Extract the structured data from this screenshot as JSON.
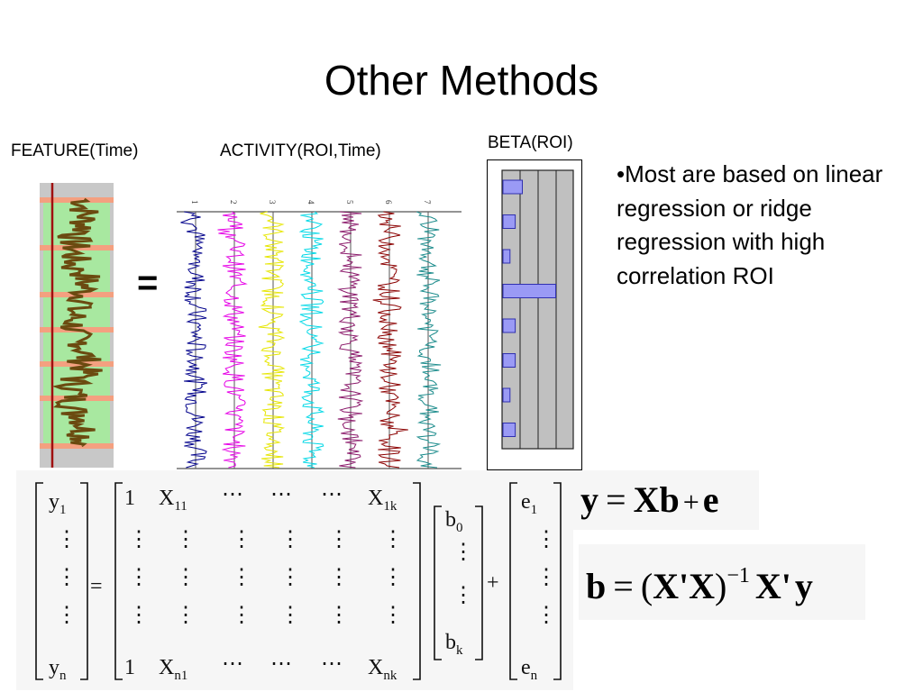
{
  "title": "Other Methods",
  "labels": {
    "feature": "FEATURE(Time)",
    "activity": "ACTIVITY(ROI,Time)",
    "beta": "BETA(ROI)"
  },
  "equals": "=",
  "bullet": "•Most are based on linear regression or ridge regression with high correlation ROI",
  "activity_plot": {
    "series": [
      {
        "label": "1",
        "color": "#00008b"
      },
      {
        "label": "2",
        "color": "#e600e6"
      },
      {
        "label": "3",
        "color": "#e6e600"
      },
      {
        "label": "4",
        "color": "#00d8e6"
      },
      {
        "label": "5",
        "color": "#8b1a6b"
      },
      {
        "label": "6",
        "color": "#8b0000"
      },
      {
        "label": "7",
        "color": "#1a8b8b"
      }
    ]
  },
  "feature_plot": {
    "trace_color": "#6b4a10",
    "band_color": "#a8e8a0",
    "stripe_color": "#f4a080",
    "marker_color": "#a01010"
  },
  "beta_plot": {
    "bar_color": "#9a9af5",
    "values": [
      0.55,
      0.35,
      0.2,
      1.5,
      0.35,
      0.35,
      0.2,
      0.35
    ]
  },
  "matrix_eq": {
    "y": [
      "y",
      "1",
      "n"
    ],
    "dots": "⋮",
    "hdots": "⋯",
    "eq": "=",
    "plus": "+",
    "x_row1": [
      "1",
      "X",
      "11",
      "X",
      "1k"
    ],
    "x_rown": [
      "1",
      "X",
      "n1",
      "X",
      "nk"
    ],
    "b": [
      "b",
      "0",
      "k"
    ],
    "e": [
      "e",
      "1",
      "n"
    ]
  },
  "formula1": {
    "lhs": "y",
    "eq": "=",
    "xb": "Xb",
    "plus": "+",
    "e": "e"
  },
  "formula2": {
    "lhs": "b",
    "eq": "=",
    "open": "(",
    "xp": "X'",
    "x": "X",
    "close": ")",
    "exp": "−1",
    "xp2": "X'",
    "y": "y"
  }
}
